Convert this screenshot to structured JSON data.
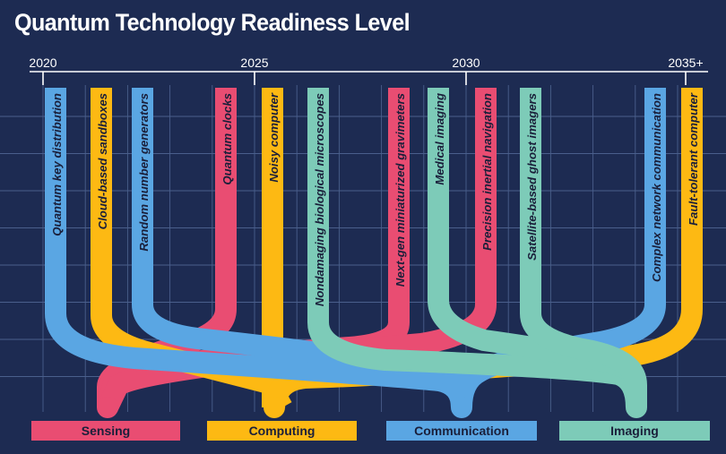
{
  "title": "Quantum Technology Readiness Level",
  "timeline": {
    "years": [
      "2020",
      "2025",
      "2030",
      "2035+"
    ]
  },
  "colors": {
    "background": "#1d2b52",
    "grid": "#4a5f8c",
    "sensing": "#e94d72",
    "computing": "#fdb913",
    "communication": "#5aa6e3",
    "imaging": "#7dcbb8"
  },
  "legend": {
    "sensing": "Sensing",
    "computing": "Computing",
    "communication": "Communication",
    "imaging": "Imaging"
  },
  "technologies": [
    {
      "label": "Quantum key distribution",
      "category": "communication",
      "year": "2020"
    },
    {
      "label": "Cloud-based sandboxes",
      "category": "computing",
      "year": "2021"
    },
    {
      "label": "Random number generators",
      "category": "communication",
      "year": "2022"
    },
    {
      "label": "Quantum clocks",
      "category": "sensing",
      "year": "2024"
    },
    {
      "label": "Noisy computer",
      "category": "computing",
      "year": "2025"
    },
    {
      "label": "Nondamaging biological microscopes",
      "category": "imaging",
      "year": "2026"
    },
    {
      "label": "Next-gen miniaturized gravimeters",
      "category": "sensing",
      "year": "2028"
    },
    {
      "label": "Medical imaging",
      "category": "imaging",
      "year": "2029"
    },
    {
      "label": "Precision inertial navigation",
      "category": "sensing",
      "year": "2030"
    },
    {
      "label": "Satellite-based ghost imagers",
      "category": "imaging",
      "year": "2031"
    },
    {
      "label": "Complex network communication",
      "category": "communication",
      "year": "2034"
    },
    {
      "label": "Fault-tolerant computer",
      "category": "computing",
      "year": "2035"
    }
  ]
}
